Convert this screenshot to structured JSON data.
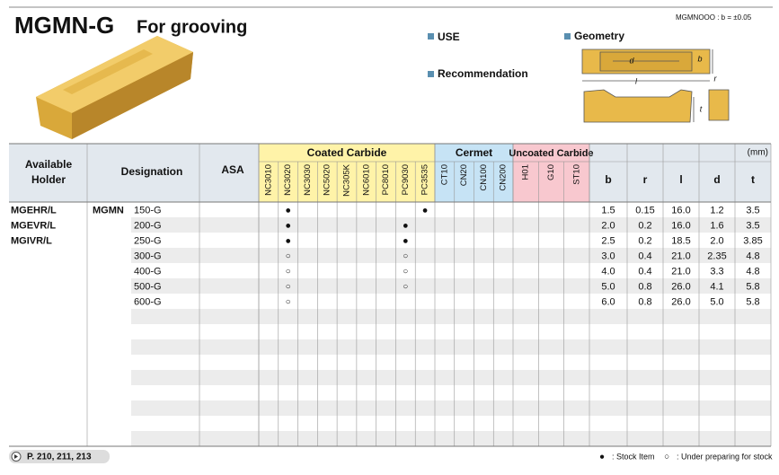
{
  "header": {
    "title": "MGMN-G",
    "subtitle": "For grooving",
    "tolerance_note": "MGMNOOO : b = ±0.05",
    "use_label": "USE",
    "recommendation_label": "Recommendation",
    "geometry_label": "Geometry",
    "geometry_dims": [
      "d",
      "b",
      "r",
      "l",
      "t"
    ]
  },
  "table": {
    "holder_header": [
      "Available",
      "Holder"
    ],
    "designation_header": "Designation",
    "asa_header": "ASA",
    "grade_groups": [
      {
        "name": "Coated Carbide",
        "grades": [
          "NC3010",
          "NC3020",
          "NC3030",
          "NC5020",
          "NC305K",
          "NC6010",
          "PC8010",
          "PC9030",
          "PC3535"
        ]
      },
      {
        "name": "Cermet",
        "grades": [
          "CT10",
          "CN20",
          "CN100",
          "CN200"
        ]
      },
      {
        "name": "Uncoated Carbide",
        "grades": [
          "H01",
          "G10",
          "ST10"
        ]
      }
    ],
    "unit": "(mm)",
    "dimensions": [
      "b",
      "r",
      "l",
      "d",
      "t"
    ],
    "holders": [
      "MGEHR/L",
      "MGEVR/L",
      "MGIVR/L"
    ],
    "designation_prefix": "MGMN",
    "rows": [
      {
        "designation": "150-G",
        "stock": [
          null,
          "●",
          null,
          null,
          null,
          null,
          null,
          null,
          "●",
          null,
          null,
          null,
          null,
          null,
          null,
          null
        ],
        "dims": [
          "1.5",
          "0.15",
          "16.0",
          "1.2",
          "3.5"
        ]
      },
      {
        "designation": "200-G",
        "stock": [
          null,
          "●",
          null,
          null,
          null,
          null,
          null,
          "●",
          null,
          null,
          null,
          null,
          null,
          null,
          null,
          null
        ],
        "dims": [
          "2.0",
          "0.2",
          "16.0",
          "1.6",
          "3.5"
        ]
      },
      {
        "designation": "250-G",
        "stock": [
          null,
          "●",
          null,
          null,
          null,
          null,
          null,
          "●",
          null,
          null,
          null,
          null,
          null,
          null,
          null,
          null
        ],
        "dims": [
          "2.5",
          "0.2",
          "18.5",
          "2.0",
          "3.85"
        ]
      },
      {
        "designation": "300-G",
        "stock": [
          null,
          "○",
          null,
          null,
          null,
          null,
          null,
          "○",
          null,
          null,
          null,
          null,
          null,
          null,
          null,
          null
        ],
        "dims": [
          "3.0",
          "0.4",
          "21.0",
          "2.35",
          "4.8"
        ]
      },
      {
        "designation": "400-G",
        "stock": [
          null,
          "○",
          null,
          null,
          null,
          null,
          null,
          "○",
          null,
          null,
          null,
          null,
          null,
          null,
          null,
          null
        ],
        "dims": [
          "4.0",
          "0.4",
          "21.0",
          "3.3",
          "4.8"
        ]
      },
      {
        "designation": "500-G",
        "stock": [
          null,
          "○",
          null,
          null,
          null,
          null,
          null,
          "○",
          null,
          null,
          null,
          null,
          null,
          null,
          null,
          null
        ],
        "dims": [
          "5.0",
          "0.8",
          "26.0",
          "4.1",
          "5.8"
        ]
      },
      {
        "designation": "600-G",
        "stock": [
          null,
          "○",
          null,
          null,
          null,
          null,
          null,
          null,
          null,
          null,
          null,
          null,
          null,
          null,
          null,
          null
        ],
        "dims": [
          "6.0",
          "0.8",
          "26.0",
          "5.0",
          "5.8"
        ]
      }
    ]
  },
  "footer": {
    "page_ref": "P. 210, 211, 213",
    "legend": [
      {
        "symbol": "●",
        "label": ": Stock Item"
      },
      {
        "symbol": "○",
        "label": ": Under preparing for stock"
      }
    ]
  }
}
